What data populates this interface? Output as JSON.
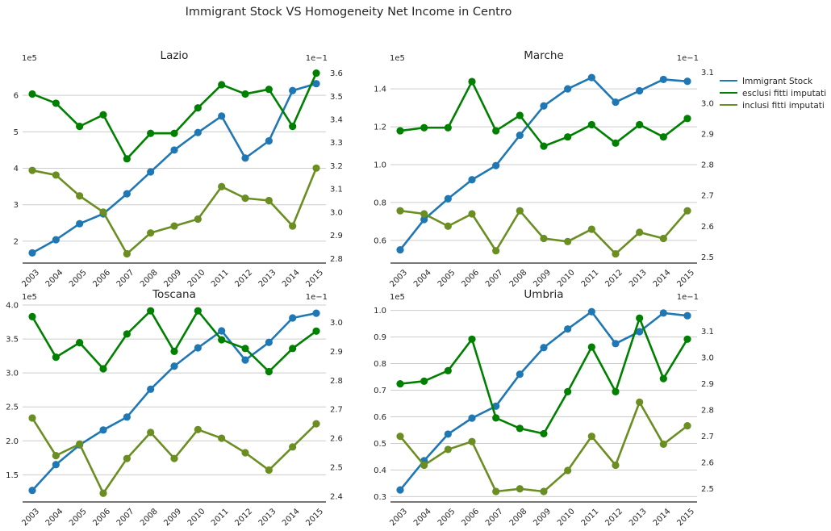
{
  "title": "Immigrant Stock VS Homogeneity Net Income in Centro",
  "years": [
    "2003",
    "2004",
    "2005",
    "2006",
    "2007",
    "2008",
    "2009",
    "2010",
    "2011",
    "2012",
    "2013",
    "2014",
    "2015"
  ],
  "legend": {
    "placement": "right",
    "items": [
      {
        "label": "Immigrant Stock",
        "color": "#1f77b4"
      },
      {
        "label": "esclusi fitti imputati",
        "color": "#008000"
      },
      {
        "label": "inclusi fitti imputati",
        "color": "#6b8e23"
      }
    ]
  },
  "colors": {
    "stock": "#1f77b4",
    "esclusi": "#008000",
    "inclusi": "#6b8e23"
  },
  "chart_data": [
    {
      "type": "line",
      "title": "Lazio",
      "left_axis": {
        "offset_label": "1e5",
        "ylim": [
          1.4,
          6.8
        ],
        "ticks": [
          2,
          3,
          4,
          5,
          6
        ],
        "tick_labels": [
          "2",
          "3",
          "4",
          "5",
          "6"
        ]
      },
      "right_axis": {
        "offset_label": "1e−1",
        "ylim": [
          2.78,
          3.63
        ],
        "ticks": [
          2.8,
          2.9,
          3.0,
          3.1,
          3.2,
          3.3,
          3.4,
          3.5,
          3.6
        ],
        "tick_labels": [
          "2.8",
          "2.9",
          "3.0",
          "3.1",
          "3.2",
          "3.3",
          "3.4",
          "3.5",
          "3.6"
        ]
      },
      "grid": true,
      "series": [
        {
          "name": "Immigrant Stock",
          "axis": "left",
          "values": [
            1.68,
            2.04,
            2.48,
            2.75,
            3.3,
            3.9,
            4.5,
            4.98,
            5.43,
            4.28,
            4.75,
            6.13,
            6.32
          ]
        },
        {
          "name": "esclusi fitti imputati",
          "axis": "right",
          "values": [
            3.51,
            3.47,
            3.37,
            3.42,
            3.23,
            3.34,
            3.34,
            3.45,
            3.55,
            3.51,
            3.53,
            3.37,
            3.6
          ]
        },
        {
          "name": "inclusi fitti imputati",
          "axis": "right",
          "values": [
            3.18,
            3.16,
            3.07,
            3.0,
            2.82,
            2.91,
            2.94,
            2.97,
            3.11,
            3.06,
            3.05,
            2.94,
            3.19
          ]
        }
      ]
    },
    {
      "type": "line",
      "title": "Marche",
      "left_axis": {
        "offset_label": "1e5",
        "ylim": [
          0.48,
          1.52
        ],
        "ticks": [
          0.6,
          0.8,
          1.0,
          1.2,
          1.4
        ],
        "tick_labels": [
          "0.6",
          "0.8",
          "1.0",
          "1.2",
          "1.4"
        ]
      },
      "right_axis": {
        "offset_label": "1e−1",
        "ylim": [
          2.48,
          3.12
        ],
        "ticks": [
          2.5,
          2.6,
          2.7,
          2.8,
          2.9,
          3.0,
          3.1
        ],
        "tick_labels": [
          "2.5",
          "2.6",
          "2.7",
          "2.8",
          "2.9",
          "3.0",
          "3.1"
        ]
      },
      "grid": true,
      "series": [
        {
          "name": "Immigrant Stock",
          "axis": "left",
          "values": [
            0.55,
            0.71,
            0.82,
            0.92,
            0.995,
            1.155,
            1.31,
            1.4,
            1.46,
            1.33,
            1.39,
            1.45,
            1.44
          ]
        },
        {
          "name": "esclusi fitti imputati",
          "axis": "right",
          "values": [
            2.91,
            2.92,
            2.92,
            3.07,
            2.91,
            2.96,
            2.86,
            2.89,
            2.93,
            2.87,
            2.93,
            2.89,
            2.95
          ]
        },
        {
          "name": "inclusi fitti imputati",
          "axis": "right",
          "values": [
            2.65,
            2.64,
            2.6,
            2.64,
            2.52,
            2.65,
            2.56,
            2.55,
            2.59,
            2.51,
            2.58,
            2.56,
            2.65
          ]
        }
      ]
    },
    {
      "type": "line",
      "title": "Toscana",
      "left_axis": {
        "offset_label": "1e5",
        "ylim": [
          1.1,
          4.0
        ],
        "ticks": [
          1.5,
          2.0,
          2.5,
          3.0,
          3.5,
          4.0
        ],
        "tick_labels": [
          "1.5",
          "2.0",
          "2.5",
          "3.0",
          "3.5",
          "4.0"
        ]
      },
      "right_axis": {
        "offset_label": "1e−1",
        "ylim": [
          2.38,
          3.06
        ],
        "ticks": [
          2.4,
          2.5,
          2.6,
          2.7,
          2.8,
          2.9,
          3.0
        ],
        "tick_labels": [
          "2.4",
          "2.5",
          "2.6",
          "2.7",
          "2.8",
          "2.9",
          "3.0"
        ]
      },
      "grid": true,
      "series": [
        {
          "name": "Immigrant Stock",
          "axis": "left",
          "values": [
            1.27,
            1.65,
            1.94,
            2.16,
            2.35,
            2.76,
            3.1,
            3.37,
            3.62,
            3.19,
            3.45,
            3.81,
            3.88
          ]
        },
        {
          "name": "esclusi fitti imputati",
          "axis": "right",
          "values": [
            3.02,
            2.88,
            2.93,
            2.84,
            2.96,
            3.04,
            2.9,
            3.04,
            2.94,
            2.91,
            2.83,
            2.91,
            2.97
          ]
        },
        {
          "name": "inclusi fitti imputati",
          "axis": "right",
          "values": [
            2.67,
            2.54,
            2.58,
            2.41,
            2.53,
            2.62,
            2.53,
            2.63,
            2.6,
            2.55,
            2.49,
            2.57,
            2.65
          ]
        }
      ]
    },
    {
      "type": "line",
      "title": "Umbria",
      "left_axis": {
        "offset_label": "1e5",
        "ylim": [
          0.28,
          1.02
        ],
        "ticks": [
          0.3,
          0.4,
          0.5,
          0.6,
          0.7,
          0.8,
          0.9,
          1.0
        ],
        "tick_labels": [
          "0.3",
          "0.4",
          "0.5",
          "0.6",
          "0.7",
          "0.8",
          "0.9",
          "1.0"
        ]
      },
      "right_axis": {
        "offset_label": "1e−1",
        "ylim": [
          2.45,
          3.2
        ],
        "ticks": [
          2.5,
          2.6,
          2.7,
          2.8,
          2.9,
          3.0,
          3.1
        ],
        "tick_labels": [
          "2.5",
          "2.6",
          "2.7",
          "2.8",
          "2.9",
          "3.0",
          "3.1"
        ]
      },
      "grid": true,
      "series": [
        {
          "name": "Immigrant Stock",
          "axis": "left",
          "values": [
            0.325,
            0.435,
            0.535,
            0.595,
            0.64,
            0.76,
            0.86,
            0.93,
            0.995,
            0.875,
            0.92,
            0.99,
            0.98
          ]
        },
        {
          "name": "esclusi fitti imputati",
          "axis": "right",
          "values": [
            2.9,
            2.91,
            2.95,
            3.07,
            2.77,
            2.73,
            2.71,
            2.87,
            3.04,
            2.87,
            3.15,
            2.92,
            3.07
          ]
        },
        {
          "name": "inclusi fitti imputati",
          "axis": "right",
          "values": [
            2.7,
            2.59,
            2.65,
            2.68,
            2.49,
            2.5,
            2.49,
            2.57,
            2.7,
            2.59,
            2.83,
            2.67,
            2.74
          ]
        }
      ]
    }
  ]
}
